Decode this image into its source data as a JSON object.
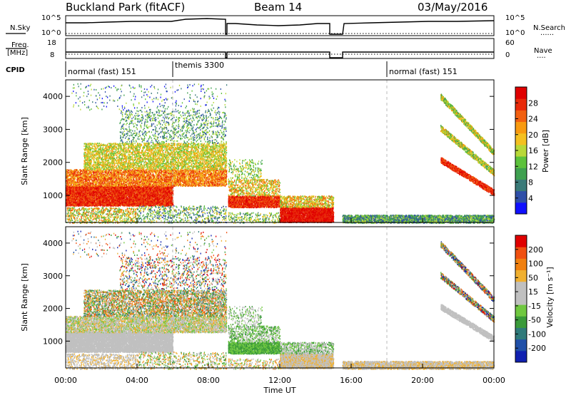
{
  "header": {
    "station": "Buckland Park (fitACF)",
    "beam": "Beam 14",
    "date": "03/May/2016"
  },
  "side_labels": {
    "n_sky": "N.Sky",
    "freq": "Freq.",
    "freq_unit": "[MHz]",
    "cpid": "CPID",
    "n_search": "N.Search",
    "nave": "Nave",
    "dots": "......",
    "dots_short": "...."
  },
  "noise_axis": {
    "top": "10^5",
    "bottom": "10^0"
  },
  "freq_axis": {
    "top": "18",
    "bottom": "8"
  },
  "nave_axis": {
    "top": "60",
    "bottom": "0"
  },
  "cpid_segments": [
    {
      "label": "normal (fast) 151",
      "start_hour": 0
    },
    {
      "label": "themis 3300",
      "start_hour": 6
    },
    {
      "label": "normal (fast) 151",
      "start_hour": 18
    }
  ],
  "colors": {
    "power_scale": [
      "#1010ff",
      "#2f4fa8",
      "#3a7a78",
      "#3fa050",
      "#5dc23c",
      "#b8d838",
      "#f4c020",
      "#f89a10",
      "#f26010",
      "#e82a0a",
      "#e00000"
    ],
    "velocity_scale": [
      "#1020b0",
      "#2050a8",
      "#2f7a7a",
      "#3a9a3a",
      "#70c840",
      "#c0c0c0",
      "#c0c0c0",
      "#f0b030",
      "#f08010",
      "#f05010",
      "#e00000"
    ]
  },
  "chart_data": [
    {
      "type": "heatmap",
      "name_panel": "power",
      "ylabel": "Slant Range [km]",
      "yticks": [
        "1000",
        "2000",
        "3000",
        "4000"
      ],
      "ylim": [
        180,
        4500
      ],
      "colorbar_label": "Power [dB]",
      "colorbar_ticks": [
        "4",
        "8",
        "12",
        "16",
        "20",
        "24",
        "28"
      ],
      "colorbar_range": [
        0,
        30
      ]
    },
    {
      "type": "heatmap",
      "name_panel": "velocity",
      "ylabel": "Slant Range [km]",
      "yticks": [
        "1000",
        "2000",
        "3000",
        "4000"
      ],
      "ylim": [
        180,
        4500
      ],
      "colorbar_label": "Velocity [m s⁻¹]",
      "colorbar_ticks": [
        "200",
        "100",
        "50",
        "15",
        "-15",
        "-50",
        "-100",
        "-200"
      ]
    }
  ],
  "xaxis": {
    "label": "Time UT",
    "ticks": [
      "00:00",
      "04:00",
      "08:00",
      "12:00",
      "16:00",
      "20:00",
      "00:00"
    ],
    "range_hours": [
      0,
      24
    ]
  }
}
